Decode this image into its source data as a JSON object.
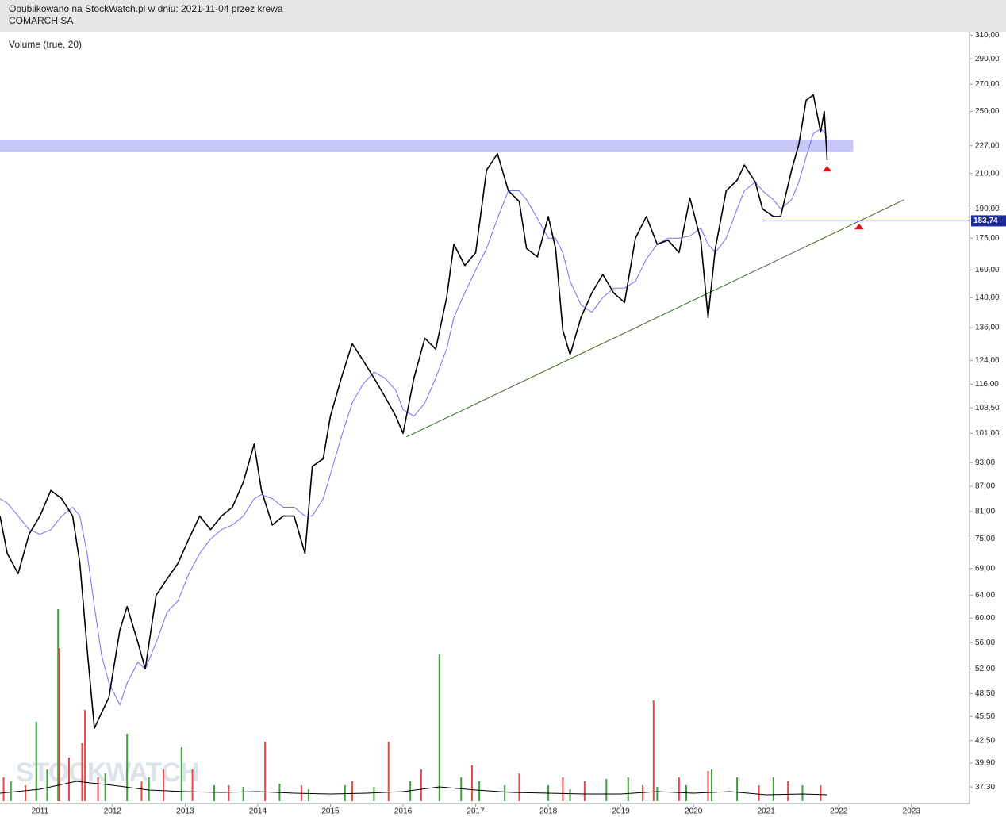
{
  "header": {
    "published": "Opublikowano na StockWatch.pl w dniu: 2021-11-04 przez krewa",
    "symbol": "COMARCH SA",
    "watermark": "STOCKWATCH"
  },
  "chart_data": {
    "type": "line",
    "subtitle": "Volume (true, 20)",
    "log_scale": true,
    "x": [
      2010.45,
      2010.55,
      2010.7,
      2010.85,
      2011.0,
      2011.15,
      2011.3,
      2011.45,
      2011.55,
      2011.65,
      2011.75,
      2011.85,
      2011.95,
      2012.1,
      2012.2,
      2012.35,
      2012.45,
      2012.6,
      2012.75,
      2012.9,
      2013.05,
      2013.2,
      2013.35,
      2013.5,
      2013.65,
      2013.8,
      2013.95,
      2014.05,
      2014.2,
      2014.35,
      2014.5,
      2014.65,
      2014.75,
      2014.9,
      2015.0,
      2015.15,
      2015.3,
      2015.45,
      2015.6,
      2015.75,
      2015.9,
      2016.0,
      2016.15,
      2016.3,
      2016.45,
      2016.6,
      2016.7,
      2016.85,
      2017.0,
      2017.15,
      2017.3,
      2017.45,
      2017.6,
      2017.7,
      2017.85,
      2018.0,
      2018.1,
      2018.2,
      2018.3,
      2018.45,
      2018.6,
      2018.75,
      2018.9,
      2019.05,
      2019.2,
      2019.35,
      2019.5,
      2019.65,
      2019.8,
      2019.95,
      2020.1,
      2020.2,
      2020.3,
      2020.45,
      2020.6,
      2020.7,
      2020.85,
      2020.95,
      2021.1,
      2021.2,
      2021.35,
      2021.45,
      2021.55,
      2021.65,
      2021.75,
      2021.8,
      2021.84
    ],
    "series": [
      {
        "color": "#000000",
        "values": [
          80,
          72,
          68,
          76,
          80,
          86,
          84,
          80,
          70,
          55,
          44,
          46,
          48,
          58,
          62,
          56,
          52,
          64,
          67,
          70,
          75,
          80,
          77,
          80,
          82,
          88,
          98,
          86,
          78,
          80,
          80,
          72,
          92,
          94,
          106,
          118,
          130,
          124,
          118,
          112,
          106,
          101,
          118,
          132,
          128,
          148,
          172,
          162,
          168,
          212,
          222,
          200,
          194,
          170,
          166,
          186,
          170,
          135,
          126,
          140,
          150,
          158,
          150,
          146,
          175,
          186,
          172,
          174,
          168,
          196,
          174,
          140,
          170,
          200,
          206,
          215,
          205,
          190,
          186,
          186,
          212,
          228,
          258,
          262,
          236,
          250,
          218
        ]
      },
      {
        "color": "#7070f0",
        "values": [
          84,
          83,
          80,
          77,
          76,
          77,
          80,
          82,
          80,
          72,
          62,
          54,
          50,
          47,
          50,
          53,
          52,
          56,
          61,
          63,
          68,
          72,
          75,
          77,
          78,
          80,
          84,
          85,
          84,
          82,
          82,
          80,
          80,
          84,
          90,
          100,
          110,
          116,
          120,
          118,
          114,
          108,
          106,
          110,
          118,
          128,
          140,
          150,
          160,
          170,
          185,
          200,
          200,
          195,
          185,
          175,
          175,
          168,
          155,
          145,
          142,
          148,
          152,
          152,
          155,
          165,
          172,
          175,
          175,
          176,
          180,
          172,
          168,
          175,
          190,
          200,
          205,
          200,
          195,
          190,
          195,
          205,
          220,
          235,
          238,
          236,
          232
        ]
      }
    ],
    "xlim": [
      2010.45,
      2023.8
    ],
    "xticks": [
      2011,
      2012,
      2013,
      2014,
      2015,
      2016,
      2017,
      2018,
      2019,
      2020,
      2021,
      2022,
      2023
    ],
    "ylim": [
      35.6,
      313
    ],
    "yticks": [
      {
        "value": 310,
        "label": "310,00"
      },
      {
        "value": 290,
        "label": "290,00"
      },
      {
        "value": 270,
        "label": "270,00"
      },
      {
        "value": 250,
        "label": "250,00"
      },
      {
        "value": 227,
        "label": "227,00"
      },
      {
        "value": 210,
        "label": "210,00"
      },
      {
        "value": 190,
        "label": "190,00"
      },
      {
        "value": 175,
        "label": "175,00"
      },
      {
        "value": 160,
        "label": "160,00"
      },
      {
        "value": 148,
        "label": "148,00"
      },
      {
        "value": 136,
        "label": "136,00"
      },
      {
        "value": 124,
        "label": "124,00"
      },
      {
        "value": 116,
        "label": "116,00"
      },
      {
        "value": 108.5,
        "label": "108,50"
      },
      {
        "value": 101,
        "label": "101,00"
      },
      {
        "value": 93,
        "label": "93,00"
      },
      {
        "value": 87,
        "label": "87,00"
      },
      {
        "value": 81,
        "label": "81,00"
      },
      {
        "value": 75,
        "label": "75,00"
      },
      {
        "value": 69,
        "label": "69,00"
      },
      {
        "value": 64,
        "label": "64,00"
      },
      {
        "value": 60,
        "label": "60,00"
      },
      {
        "value": 56,
        "label": "56,00"
      },
      {
        "value": 52,
        "label": "52,00"
      },
      {
        "value": 48.5,
        "label": "48,50"
      },
      {
        "value": 45.5,
        "label": "45,50"
      },
      {
        "value": 42.5,
        "label": "42,50"
      },
      {
        "value": 39.9,
        "label": "39,90"
      },
      {
        "value": 37.3,
        "label": "37,30"
      }
    ],
    "hband": {
      "values": [
        223,
        231
      ],
      "color": "#c8c8f8"
    },
    "hline": {
      "value": 183.74,
      "label": "183,74",
      "x": [
        2020.95,
        2023.8
      ],
      "color": "#1c2a9a"
    },
    "trendline": {
      "x": [
        2016.05,
        2022.9
      ],
      "values": [
        100,
        195
      ],
      "color": "#3a6a2a"
    },
    "markers": {
      "x": [
        2021.84,
        2022.28
      ],
      "values": [
        213,
        181
      ],
      "color": "#e01010"
    },
    "volume": {
      "vlim": [
        0,
        250
      ],
      "up": {
        "color": "#3aa03a",
        "x": [
          2010.6,
          2010.95,
          2011.1,
          2011.25,
          2011.9,
          2012.2,
          2012.5,
          2012.95,
          2013.4,
          2013.8,
          2014.3,
          2014.7,
          2015.2,
          2015.6,
          2016.1,
          2016.5,
          2016.8,
          2017.05,
          2017.4,
          2018.0,
          2018.3,
          2018.8,
          2019.1,
          2019.5,
          2019.9,
          2020.25,
          2020.6,
          2021.1,
          2021.5
        ],
        "values": [
          25,
          100,
          40,
          242,
          35,
          85,
          30,
          68,
          20,
          18,
          22,
          15,
          20,
          18,
          25,
          185,
          30,
          25,
          20,
          20,
          15,
          28,
          30,
          18,
          20,
          40,
          30,
          30,
          20
        ]
      },
      "down": {
        "color": "#e84848",
        "x": [
          2010.5,
          2010.8,
          2011.27,
          2011.4,
          2011.58,
          2011.62,
          2011.8,
          2012.4,
          2012.7,
          2013.1,
          2013.6,
          2014.1,
          2014.6,
          2015.3,
          2015.8,
          2016.25,
          2016.95,
          2017.6,
          2018.2,
          2018.5,
          2019.3,
          2019.45,
          2019.8,
          2020.2,
          2020.9,
          2021.3,
          2021.75
        ],
        "values": [
          30,
          20,
          193,
          55,
          73,
          115,
          30,
          25,
          40,
          40,
          20,
          75,
          20,
          25,
          75,
          40,
          45,
          35,
          30,
          25,
          20,
          127,
          30,
          38,
          20,
          25,
          20
        ]
      },
      "average": {
        "color": "#000000",
        "x": [
          2010.45,
          2011.0,
          2011.5,
          2012.0,
          2012.5,
          2013.0,
          2013.5,
          2014.0,
          2014.5,
          2015.0,
          2015.5,
          2016.0,
          2016.5,
          2017.0,
          2017.5,
          2018.0,
          2018.5,
          2019.0,
          2019.5,
          2020.0,
          2020.5,
          2021.0,
          2021.5,
          2021.84
        ],
        "values": [
          10,
          15,
          25,
          20,
          14,
          12,
          11,
          12,
          10,
          9,
          10,
          12,
          18,
          14,
          11,
          10,
          9,
          9,
          12,
          10,
          12,
          8,
          9,
          8
        ]
      }
    }
  }
}
